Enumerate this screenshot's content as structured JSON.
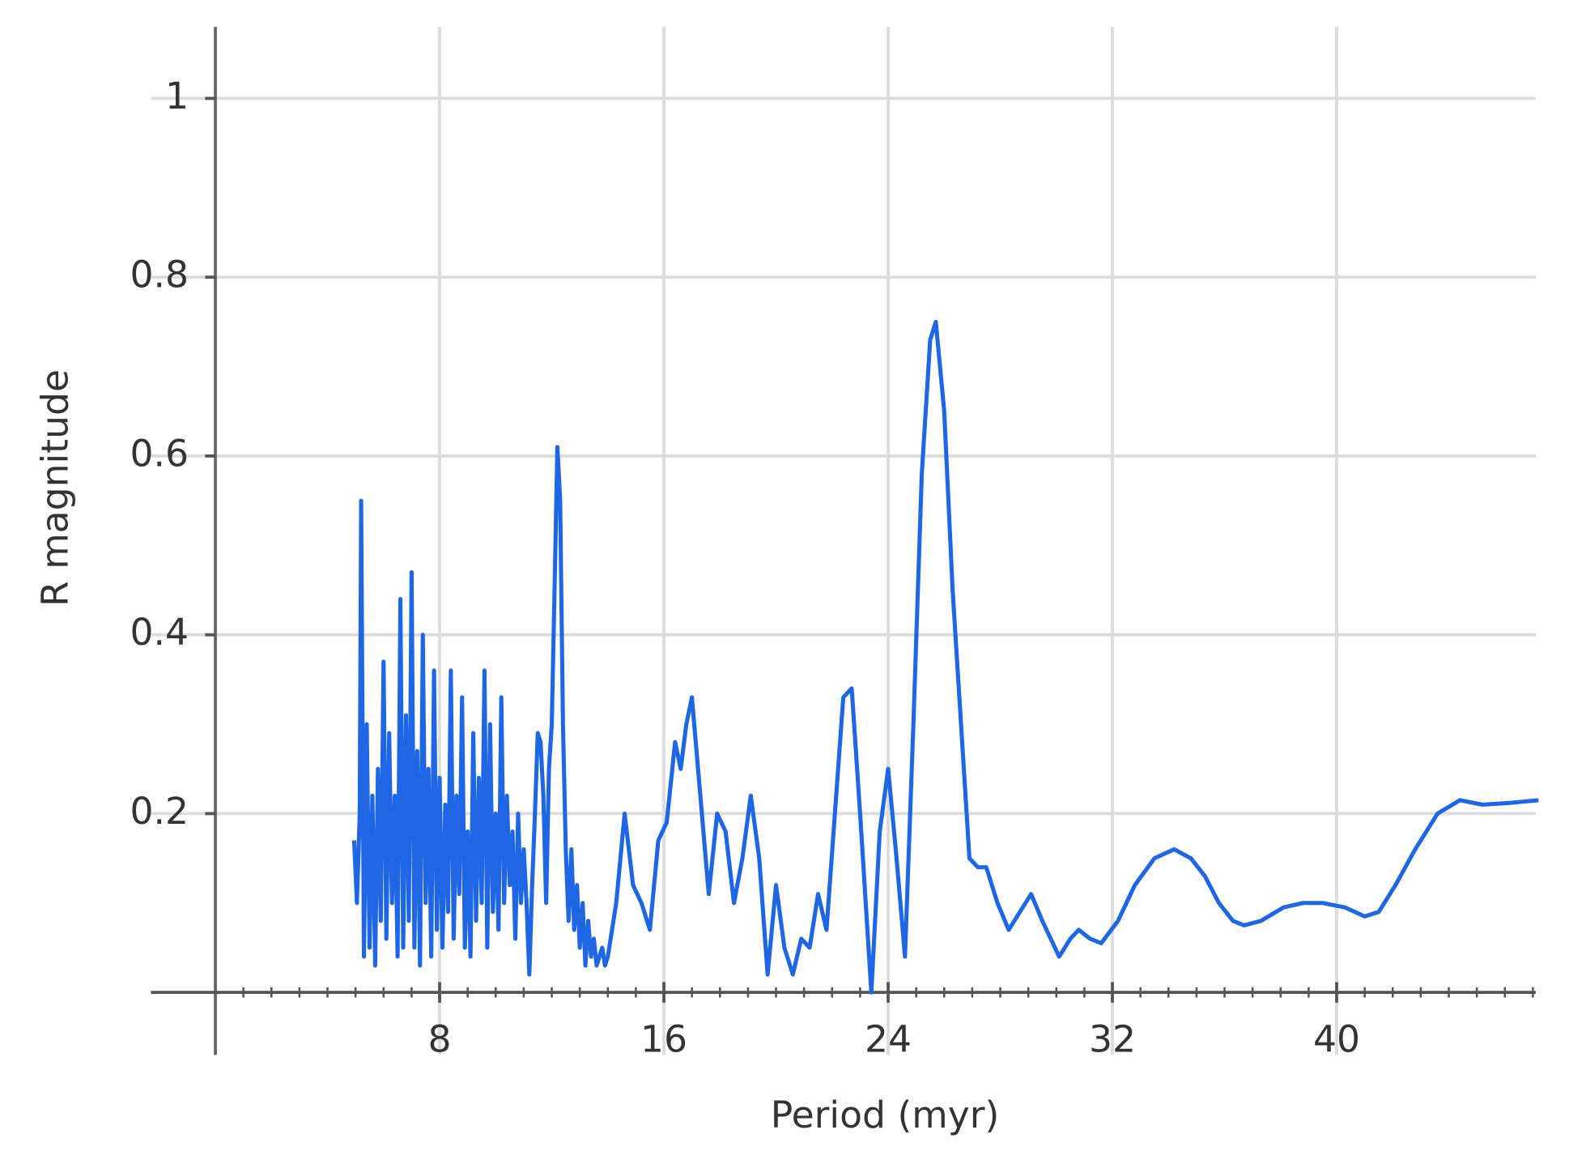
{
  "chart_data": {
    "type": "line",
    "xlabel": "Period (myr)",
    "ylabel": "R magnitude",
    "color": "#1f66e5",
    "grid": true,
    "xlim": [
      -2.3,
      47.1
    ],
    "ylim": [
      -0.07,
      1.08
    ],
    "xticks": [
      8,
      16,
      24,
      32,
      40
    ],
    "xminorticks": [
      1,
      2,
      3,
      4,
      5,
      6,
      7,
      9,
      10,
      11,
      12,
      13,
      14,
      15,
      17,
      18,
      19,
      20,
      21,
      22,
      23,
      25,
      26,
      27,
      28,
      29,
      30,
      31,
      33,
      34,
      35,
      36,
      37,
      38,
      39,
      41,
      42,
      43,
      44,
      45,
      46,
      47
    ],
    "yticks": [
      0.2,
      0.4,
      0.6,
      0.8,
      1
    ],
    "x": [
      4.95,
      5.05,
      5.15,
      5.2,
      5.3,
      5.4,
      5.5,
      5.6,
      5.7,
      5.8,
      5.9,
      6.0,
      6.1,
      6.2,
      6.3,
      6.4,
      6.5,
      6.6,
      6.7,
      6.8,
      6.9,
      7.0,
      7.1,
      7.2,
      7.3,
      7.4,
      7.5,
      7.6,
      7.7,
      7.8,
      7.9,
      8.0,
      8.1,
      8.2,
      8.3,
      8.4,
      8.5,
      8.6,
      8.7,
      8.8,
      8.9,
      9.0,
      9.1,
      9.2,
      9.3,
      9.4,
      9.5,
      9.6,
      9.7,
      9.8,
      9.9,
      10.0,
      10.1,
      10.2,
      10.3,
      10.4,
      10.5,
      10.6,
      10.7,
      10.8,
      10.9,
      11.0,
      11.1,
      11.2,
      11.3,
      11.4,
      11.5,
      11.6,
      11.7,
      11.8,
      11.9,
      12.0,
      12.1,
      12.2,
      12.3,
      12.4,
      12.5,
      12.6,
      12.7,
      12.8,
      12.9,
      13.0,
      13.1,
      13.2,
      13.3,
      13.4,
      13.5,
      13.6,
      13.7,
      13.8,
      13.9,
      14.0,
      14.3,
      14.6,
      14.9,
      15.2,
      15.5,
      15.8,
      16.1,
      16.4,
      16.6,
      16.8,
      17.0,
      17.3,
      17.6,
      17.9,
      18.2,
      18.5,
      18.8,
      19.1,
      19.4,
      19.7,
      20.0,
      20.3,
      20.6,
      20.9,
      21.2,
      21.5,
      21.8,
      22.1,
      22.4,
      22.7,
      23.0,
      23.4,
      23.7,
      24.0,
      24.3,
      24.6,
      24.9,
      25.2,
      25.5,
      25.7,
      26.0,
      26.3,
      26.6,
      26.9,
      27.2,
      27.5,
      27.9,
      28.3,
      28.7,
      29.1,
      29.5,
      30.1,
      30.5,
      30.8,
      31.2,
      31.6,
      32.2,
      32.8,
      33.5,
      34.2,
      34.8,
      35.3,
      35.8,
      36.3,
      36.7,
      37.3,
      38.1,
      38.8,
      39.5,
      40.3,
      41.0,
      41.5,
      42.1,
      42.8,
      43.6,
      44.4,
      45.2,
      46.2,
      47.2
    ],
    "values": [
      0.17,
      0.1,
      0.2,
      0.55,
      0.04,
      0.3,
      0.05,
      0.22,
      0.03,
      0.25,
      0.08,
      0.37,
      0.06,
      0.29,
      0.1,
      0.22,
      0.04,
      0.44,
      0.05,
      0.31,
      0.08,
      0.47,
      0.05,
      0.27,
      0.03,
      0.4,
      0.1,
      0.25,
      0.04,
      0.36,
      0.07,
      0.24,
      0.05,
      0.21,
      0.09,
      0.36,
      0.06,
      0.22,
      0.11,
      0.33,
      0.05,
      0.18,
      0.04,
      0.29,
      0.08,
      0.24,
      0.1,
      0.36,
      0.05,
      0.3,
      0.09,
      0.2,
      0.07,
      0.33,
      0.1,
      0.22,
      0.12,
      0.18,
      0.06,
      0.2,
      0.1,
      0.16,
      0.1,
      0.02,
      0.12,
      0.2,
      0.29,
      0.28,
      0.22,
      0.1,
      0.25,
      0.3,
      0.45,
      0.61,
      0.55,
      0.3,
      0.16,
      0.08,
      0.16,
      0.07,
      0.12,
      0.05,
      0.1,
      0.03,
      0.08,
      0.04,
      0.06,
      0.03,
      0.04,
      0.05,
      0.03,
      0.04,
      0.1,
      0.2,
      0.12,
      0.1,
      0.07,
      0.17,
      0.19,
      0.28,
      0.25,
      0.3,
      0.33,
      0.22,
      0.11,
      0.2,
      0.18,
      0.1,
      0.15,
      0.22,
      0.15,
      0.02,
      0.12,
      0.05,
      0.02,
      0.06,
      0.05,
      0.11,
      0.07,
      0.2,
      0.33,
      0.34,
      0.2,
      0.0,
      0.18,
      0.25,
      0.15,
      0.04,
      0.3,
      0.58,
      0.73,
      0.75,
      0.65,
      0.45,
      0.3,
      0.15,
      0.14,
      0.14,
      0.1,
      0.07,
      0.09,
      0.11,
      0.08,
      0.04,
      0.06,
      0.07,
      0.06,
      0.055,
      0.08,
      0.12,
      0.15,
      0.16,
      0.15,
      0.13,
      0.1,
      0.08,
      0.075,
      0.08,
      0.095,
      0.1,
      0.1,
      0.095,
      0.085,
      0.09,
      0.12,
      0.16,
      0.2,
      0.215,
      0.21,
      0.212,
      0.215
    ]
  }
}
